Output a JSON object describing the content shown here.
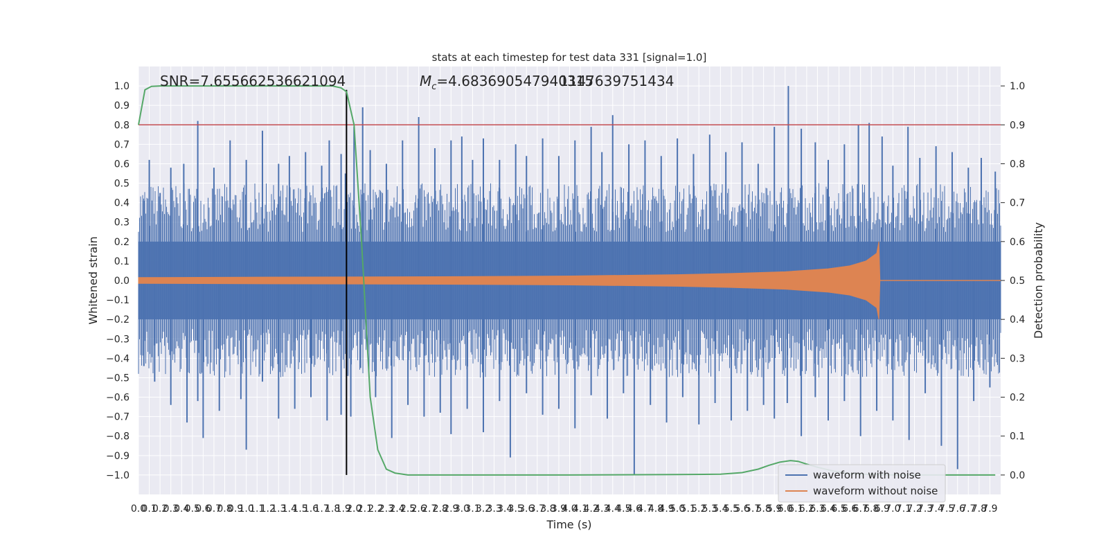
{
  "chart_data": {
    "type": "line",
    "title": "stats at each timestep for test data 331 [signal=1.0]",
    "xlabel": "Time (s)",
    "ylabel_left": "Whitened strain",
    "ylabel_right": "Detection probability",
    "annotations": {
      "snr": "SNR=7.655662536621094",
      "mc_prefix": "M",
      "mc_sub": "c",
      "mc_value": "=4.683690547940315",
      "mc_overlap": "1147639751434"
    },
    "xlim": [
      0.0,
      8.0
    ],
    "ylim_left": [
      -1.1,
      1.1
    ],
    "ylim_right": [
      -0.05,
      1.05
    ],
    "x_ticks": [
      "0.0",
      "0.1",
      "0.2",
      "0.3",
      "0.4",
      "0.5",
      "0.6",
      "0.7",
      "0.8",
      "0.9",
      "1.0",
      "1.1",
      "1.2",
      "1.3",
      "1.4",
      "1.5",
      "1.6",
      "1.7",
      "1.8",
      "1.9",
      "2.0",
      "2.1",
      "2.2",
      "2.3",
      "2.4",
      "2.5",
      "2.6",
      "2.7",
      "2.8",
      "2.9",
      "3.0",
      "3.1",
      "3.2",
      "3.3",
      "3.4",
      "3.5",
      "3.6",
      "3.7",
      "3.8",
      "3.9",
      "4.0",
      "4.1",
      "4.2",
      "4.3",
      "4.4",
      "4.5",
      "4.6",
      "4.7",
      "4.8",
      "4.9",
      "5.0",
      "5.1",
      "5.2",
      "5.3",
      "5.4",
      "5.5",
      "5.6",
      "5.7",
      "5.8",
      "5.9",
      "6.0",
      "6.1",
      "6.2",
      "6.3",
      "6.4",
      "6.5",
      "6.6",
      "6.7",
      "6.8",
      "6.9",
      "7.0",
      "7.1",
      "7.2",
      "7.3",
      "7.4",
      "7.5",
      "7.6",
      "7.7",
      "7.8",
      "7.9"
    ],
    "y_ticks_left": [
      "1.0",
      "0.9",
      "0.8",
      "0.7",
      "0.6",
      "0.5",
      "0.4",
      "0.3",
      "0.2",
      "0.1",
      "0.0",
      "−0.1",
      "−0.2",
      "−0.3",
      "−0.4",
      "−0.5",
      "−0.6",
      "−0.7",
      "−0.8",
      "−0.9",
      "−1.0"
    ],
    "y_ticks_right": [
      "1.0",
      "0.9",
      "0.8",
      "0.7",
      "0.6",
      "0.5",
      "0.4",
      "0.3",
      "0.2",
      "0.1",
      "0.0"
    ],
    "threshold": {
      "value": 0.9,
      "axis": "right",
      "color": "#c44e52"
    },
    "event_marker": {
      "x": 1.93,
      "y_from": -1.0,
      "y_to": 0.98,
      "color": "#000000"
    },
    "series": [
      {
        "name": "waveform with noise",
        "color": "#4c72b0",
        "axis": "left",
        "description_values": {
          "core_envelope": 0.2,
          "typical_peak": 0.6,
          "max_peak": 1.0,
          "min_peak": -1.0
        },
        "spikes_high": [
          [
            0.05,
            0.41
          ],
          [
            0.1,
            0.62
          ],
          [
            0.2,
            0.45
          ],
          [
            0.3,
            0.58
          ],
          [
            0.42,
            0.6
          ],
          [
            0.55,
            0.82
          ],
          [
            0.7,
            0.58
          ],
          [
            0.85,
            0.72
          ],
          [
            1.0,
            0.62
          ],
          [
            1.15,
            0.77
          ],
          [
            1.3,
            0.6
          ],
          [
            1.4,
            0.64
          ],
          [
            1.55,
            0.66
          ],
          [
            1.7,
            0.59
          ],
          [
            1.77,
            0.72
          ],
          [
            1.88,
            0.65
          ],
          [
            1.92,
            0.55
          ],
          [
            2.0,
            0.79
          ],
          [
            2.08,
            0.89
          ],
          [
            2.15,
            0.67
          ],
          [
            2.3,
            0.6
          ],
          [
            2.45,
            0.72
          ],
          [
            2.6,
            0.84
          ],
          [
            2.75,
            0.68
          ],
          [
            2.9,
            0.72
          ],
          [
            3.0,
            0.74
          ],
          [
            3.1,
            0.62
          ],
          [
            3.2,
            0.73
          ],
          [
            3.35,
            0.62
          ],
          [
            3.5,
            0.7
          ],
          [
            3.6,
            0.64
          ],
          [
            3.75,
            0.73
          ],
          [
            3.9,
            0.64
          ],
          [
            4.05,
            0.72
          ],
          [
            4.2,
            0.79
          ],
          [
            4.3,
            0.66
          ],
          [
            4.4,
            0.85
          ],
          [
            4.55,
            0.7
          ],
          [
            4.7,
            0.72
          ],
          [
            4.85,
            0.64
          ],
          [
            5.0,
            0.73
          ],
          [
            5.15,
            0.65
          ],
          [
            5.3,
            0.75
          ],
          [
            5.45,
            0.66
          ],
          [
            5.6,
            0.71
          ],
          [
            5.75,
            0.6
          ],
          [
            5.9,
            0.79
          ],
          [
            6.03,
            1.0
          ],
          [
            6.15,
            0.78
          ],
          [
            6.28,
            0.71
          ],
          [
            6.4,
            0.62
          ],
          [
            6.55,
            0.7
          ],
          [
            6.68,
            0.8
          ],
          [
            6.78,
            0.81
          ],
          [
            6.9,
            0.74
          ],
          [
            7.0,
            0.59
          ],
          [
            7.14,
            0.79
          ],
          [
            7.25,
            0.63
          ],
          [
            7.4,
            0.69
          ],
          [
            7.55,
            0.66
          ],
          [
            7.7,
            0.58
          ],
          [
            7.82,
            0.63
          ],
          [
            7.95,
            0.56
          ]
        ],
        "spikes_low": [
          [
            0.05,
            -0.44
          ],
          [
            0.15,
            -0.52
          ],
          [
            0.3,
            -0.64
          ],
          [
            0.45,
            -0.73
          ],
          [
            0.55,
            -0.62
          ],
          [
            0.6,
            -0.81
          ],
          [
            0.75,
            -0.67
          ],
          [
            0.95,
            -0.61
          ],
          [
            1.0,
            -0.87
          ],
          [
            1.15,
            -0.52
          ],
          [
            1.3,
            -0.71
          ],
          [
            1.45,
            -0.66
          ],
          [
            1.6,
            -0.6
          ],
          [
            1.75,
            -0.72
          ],
          [
            1.88,
            -0.69
          ],
          [
            1.97,
            -0.7
          ],
          [
            2.06,
            -0.45
          ],
          [
            2.2,
            -0.6
          ],
          [
            2.35,
            -0.81
          ],
          [
            2.5,
            -0.64
          ],
          [
            2.65,
            -0.7
          ],
          [
            2.8,
            -0.68
          ],
          [
            2.9,
            -0.79
          ],
          [
            3.05,
            -0.66
          ],
          [
            3.2,
            -0.78
          ],
          [
            3.35,
            -0.62
          ],
          [
            3.45,
            -0.91
          ],
          [
            3.6,
            -0.58
          ],
          [
            3.75,
            -0.69
          ],
          [
            3.9,
            -0.66
          ],
          [
            4.05,
            -0.76
          ],
          [
            4.2,
            -0.59
          ],
          [
            4.35,
            -0.71
          ],
          [
            4.5,
            -0.58
          ],
          [
            4.6,
            -1.0
          ],
          [
            4.75,
            -0.64
          ],
          [
            4.9,
            -0.73
          ],
          [
            5.05,
            -0.6
          ],
          [
            5.2,
            -0.74
          ],
          [
            5.35,
            -0.63
          ],
          [
            5.5,
            -0.72
          ],
          [
            5.65,
            -0.67
          ],
          [
            5.8,
            -0.64
          ],
          [
            5.9,
            -0.71
          ],
          [
            6.02,
            -0.63
          ],
          [
            6.15,
            -0.8
          ],
          [
            6.28,
            -0.6
          ],
          [
            6.4,
            -0.72
          ],
          [
            6.55,
            -0.62
          ],
          [
            6.7,
            -0.8
          ],
          [
            6.85,
            -0.67
          ],
          [
            7.0,
            -0.72
          ],
          [
            7.15,
            -0.82
          ],
          [
            7.3,
            -0.58
          ],
          [
            7.45,
            -0.85
          ],
          [
            7.6,
            -0.97
          ],
          [
            7.75,
            -0.62
          ],
          [
            7.9,
            -0.55
          ]
        ]
      },
      {
        "name": "waveform without noise",
        "color": "#dd8452",
        "axis": "left",
        "envelope_x": [
          0.0,
          1.0,
          2.0,
          3.0,
          4.0,
          5.0,
          5.5,
          6.0,
          6.4,
          6.6,
          6.75,
          6.85,
          6.87,
          6.88,
          7.9
        ],
        "envelope_y": [
          0.015,
          0.017,
          0.018,
          0.02,
          0.023,
          0.03,
          0.036,
          0.045,
          0.06,
          0.075,
          0.1,
          0.14,
          0.2,
          0.0,
          0.0
        ]
      },
      {
        "name": "",
        "color": "#55a868",
        "axis": "right",
        "x": [
          0.0,
          0.06,
          0.12,
          0.2,
          0.4,
          0.8,
          1.2,
          1.6,
          1.8,
          1.88,
          1.93,
          2.0,
          2.07,
          2.15,
          2.22,
          2.3,
          2.38,
          2.5,
          3.0,
          4.0,
          5.0,
          5.4,
          5.6,
          5.75,
          5.85,
          5.95,
          6.05,
          6.12,
          6.2,
          6.3,
          6.45,
          6.6,
          7.0,
          7.5,
          7.95
        ],
        "y": [
          0.9,
          0.99,
          0.999,
          1.0,
          1.0,
          1.0,
          1.0,
          1.0,
          1.0,
          0.995,
          0.985,
          0.9,
          0.6,
          0.2,
          0.065,
          0.015,
          0.005,
          0.0,
          0.0,
          0.0,
          0.001,
          0.002,
          0.006,
          0.015,
          0.025,
          0.033,
          0.037,
          0.035,
          0.028,
          0.02,
          0.01,
          0.003,
          0.0,
          0.0,
          0.0
        ]
      }
    ],
    "legend": {
      "position": "lower-right",
      "entries": [
        "waveform with noise",
        "waveform without noise"
      ]
    },
    "grid": true,
    "background": "#eaeaf2"
  }
}
